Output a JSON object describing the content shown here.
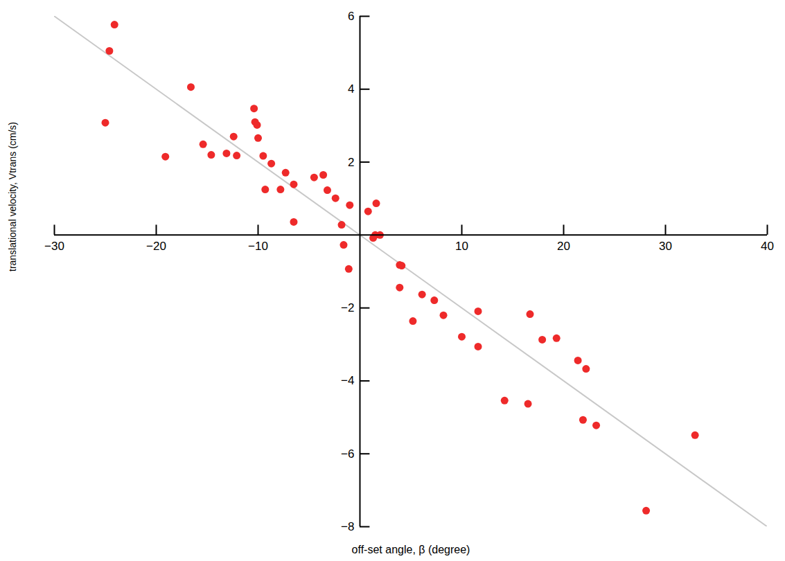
{
  "chart_data": {
    "type": "scatter",
    "x_label": "off-set angle, β (degree)",
    "y_label": "translational velocity, Vtrans (cm/s)",
    "xlim": [
      -30,
      40
    ],
    "xticks": [
      -30,
      -20,
      -10,
      10,
      20,
      30,
      40
    ],
    "ylim": [
      -8,
      6
    ],
    "yticks": [
      -8,
      -6,
      -4,
      -2,
      2,
      4,
      6
    ],
    "grid": false,
    "series": [
      {
        "type": "scatter",
        "color": "#ee2a2a",
        "marker": "circle",
        "x": [
          -24.1,
          -24.6,
          -25.0,
          -19.1,
          -16.6,
          -15.4,
          -14.6,
          -13.1,
          -12.4,
          -12.1,
          -10.4,
          -10.3,
          -10.1,
          -10.0,
          -9.5,
          -9.3,
          -8.7,
          -7.8,
          -7.3,
          -6.5,
          -6.5,
          -4.5,
          -3.6,
          -3.2,
          -2.4,
          -1.8,
          -1.6,
          -1.0,
          -1.1,
          0.8,
          1.6,
          1.3,
          1.5,
          1.97,
          3.9,
          4.1,
          3.9,
          5.2,
          6.1,
          7.3,
          8.2,
          10.0,
          11.6,
          11.6,
          14.2,
          16.5,
          16.7,
          17.9,
          19.3,
          21.4,
          22.2,
          21.9,
          23.2,
          28.1,
          32.9
        ],
        "values": [
          5.77,
          5.05,
          3.08,
          2.15,
          4.06,
          2.49,
          2.2,
          2.24,
          2.7,
          2.18,
          3.47,
          3.1,
          3.02,
          2.66,
          2.17,
          1.25,
          1.96,
          1.25,
          1.71,
          1.39,
          0.36,
          1.58,
          1.65,
          1.23,
          1.01,
          0.28,
          -0.27,
          0.82,
          -0.93,
          0.65,
          0.87,
          -0.08,
          0.0,
          0.0,
          -0.82,
          -0.84,
          -1.44,
          -2.36,
          -1.63,
          -1.79,
          -2.2,
          -2.79,
          -3.06,
          -2.09,
          -4.54,
          -4.63,
          -2.17,
          -2.87,
          -2.83,
          -3.44,
          -3.67,
          -5.07,
          -5.22,
          -7.56,
          -5.49
        ]
      },
      {
        "type": "line",
        "color": "#c8c8c8",
        "line_style": "solid",
        "x": [
          -30,
          40
        ],
        "values": [
          6,
          -8
        ]
      }
    ]
  }
}
